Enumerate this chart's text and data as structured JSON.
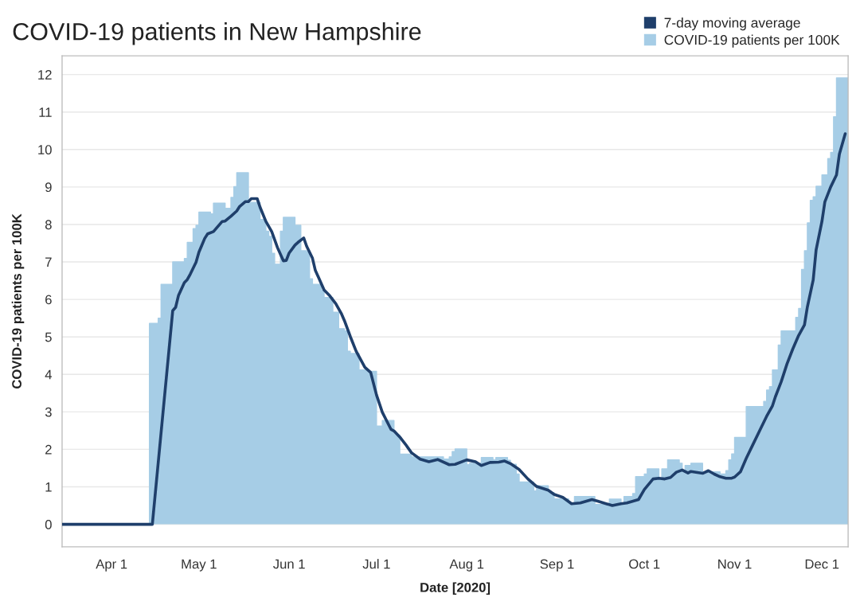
{
  "chart_data": {
    "type": "line",
    "title": "COVID-19 patients in New Hampshire",
    "xlabel": "Date [2020]",
    "ylabel": "COVID-19 patients per 100K",
    "series": [
      {
        "name": "7-day moving average",
        "color": "#1f3f6b",
        "x": [
          "2020-03-15",
          "2020-04-15",
          "2020-04-22",
          "2020-04-23",
          "2020-04-24",
          "2020-04-26",
          "2020-04-27",
          "2020-04-28",
          "2020-04-30",
          "2020-05-01",
          "2020-05-03",
          "2020-05-04",
          "2020-05-06",
          "2020-05-08",
          "2020-05-09",
          "2020-05-10",
          "2020-05-12",
          "2020-05-14",
          "2020-05-15",
          "2020-05-17",
          "2020-05-18",
          "2020-05-19",
          "2020-05-21",
          "2020-05-22",
          "2020-05-24",
          "2020-05-26",
          "2020-05-28",
          "2020-05-30",
          "2020-05-31",
          "2020-06-01",
          "2020-06-03",
          "2020-06-04",
          "2020-06-06",
          "2020-06-07",
          "2020-06-09",
          "2020-06-10",
          "2020-06-11",
          "2020-06-13",
          "2020-06-15",
          "2020-06-17",
          "2020-06-19",
          "2020-06-20",
          "2020-06-22",
          "2020-06-24",
          "2020-06-27",
          "2020-06-29",
          "2020-07-01",
          "2020-07-03",
          "2020-07-06",
          "2020-07-07",
          "2020-07-09",
          "2020-07-11",
          "2020-07-13",
          "2020-07-16",
          "2020-07-19",
          "2020-07-22",
          "2020-07-26",
          "2020-07-28",
          "2020-08-01",
          "2020-08-04",
          "2020-08-06",
          "2020-08-09",
          "2020-08-12",
          "2020-08-14",
          "2020-08-16",
          "2020-08-19",
          "2020-08-22",
          "2020-08-25",
          "2020-08-29",
          "2020-08-31",
          "2020-09-03",
          "2020-09-06",
          "2020-09-09",
          "2020-09-13",
          "2020-09-15",
          "2020-09-20",
          "2020-09-23",
          "2020-09-25",
          "2020-09-29",
          "2020-10-01",
          "2020-10-04",
          "2020-10-06",
          "2020-10-08",
          "2020-10-10",
          "2020-10-12",
          "2020-10-14",
          "2020-10-16",
          "2020-10-17",
          "2020-10-21",
          "2020-10-23",
          "2020-10-25",
          "2020-10-27",
          "2020-10-29",
          "2020-10-31",
          "2020-11-01",
          "2020-11-03",
          "2020-11-05",
          "2020-11-07",
          "2020-11-10",
          "2020-11-12",
          "2020-11-14",
          "2020-11-15",
          "2020-11-17",
          "2020-11-19",
          "2020-11-21",
          "2020-11-23",
          "2020-11-25",
          "2020-11-26",
          "2020-11-28",
          "2020-11-29",
          "2020-12-01",
          "2020-12-02",
          "2020-12-04",
          "2020-12-06",
          "2020-12-07",
          "2020-12-09"
        ],
        "values": [
          0,
          0,
          5.7,
          5.79,
          6.11,
          6.45,
          6.53,
          6.67,
          6.99,
          7.26,
          7.63,
          7.75,
          7.81,
          7.99,
          8.08,
          8.09,
          8.22,
          8.36,
          8.48,
          8.61,
          8.61,
          8.69,
          8.69,
          8.46,
          8.08,
          7.81,
          7.38,
          7.03,
          7.04,
          7.24,
          7.45,
          7.52,
          7.64,
          7.42,
          7.1,
          6.77,
          6.6,
          6.25,
          6.09,
          5.89,
          5.61,
          5.43,
          5.01,
          4.62,
          4.19,
          4.05,
          3.45,
          2.99,
          2.53,
          2.49,
          2.33,
          2.13,
          1.91,
          1.74,
          1.67,
          1.73,
          1.59,
          1.6,
          1.72,
          1.67,
          1.57,
          1.65,
          1.66,
          1.69,
          1.62,
          1.46,
          1.21,
          1.01,
          0.91,
          0.8,
          0.72,
          0.55,
          0.57,
          0.66,
          0.62,
          0.5,
          0.55,
          0.57,
          0.66,
          0.93,
          1.21,
          1.23,
          1.21,
          1.25,
          1.39,
          1.45,
          1.37,
          1.41,
          1.36,
          1.43,
          1.34,
          1.27,
          1.23,
          1.23,
          1.26,
          1.4,
          1.76,
          2.08,
          2.56,
          2.88,
          3.16,
          3.4,
          3.8,
          4.28,
          4.68,
          5.04,
          5.32,
          5.8,
          6.52,
          7.32,
          8.08,
          8.6,
          9.0,
          9.32,
          9.88,
          10.42
        ]
      },
      {
        "name": "COVID-19 patients per 100K",
        "type": "area",
        "color": "#a6cde6",
        "x": [
          "2020-03-15",
          "2020-04-14",
          "2020-04-14",
          "2020-04-17",
          "2020-04-17",
          "2020-04-18",
          "2020-04-18",
          "2020-04-22",
          "2020-04-22",
          "2020-04-26",
          "2020-04-26",
          "2020-04-27",
          "2020-04-27",
          "2020-04-29",
          "2020-04-29",
          "2020-04-30",
          "2020-04-30",
          "2020-05-01",
          "2020-05-01",
          "2020-05-05",
          "2020-05-05",
          "2020-05-06",
          "2020-05-06",
          "2020-05-10",
          "2020-05-10",
          "2020-05-12",
          "2020-05-12",
          "2020-05-13",
          "2020-05-13",
          "2020-05-14",
          "2020-05-14",
          "2020-05-18",
          "2020-05-18",
          "2020-05-22",
          "2020-05-22",
          "2020-05-24",
          "2020-05-24",
          "2020-05-25",
          "2020-05-25",
          "2020-05-26",
          "2020-05-26",
          "2020-05-27",
          "2020-05-27",
          "2020-05-29",
          "2020-05-29",
          "2020-05-30",
          "2020-05-30",
          "2020-06-03",
          "2020-06-03",
          "2020-06-05",
          "2020-06-05",
          "2020-06-07",
          "2020-06-07",
          "2020-06-08",
          "2020-06-08",
          "2020-06-09",
          "2020-06-09",
          "2020-06-12",
          "2020-06-12",
          "2020-06-13",
          "2020-06-13",
          "2020-06-16",
          "2020-06-16",
          "2020-06-18",
          "2020-06-18",
          "2020-06-20",
          "2020-06-20",
          "2020-06-21",
          "2020-06-21",
          "2020-06-22",
          "2020-06-22",
          "2020-06-25",
          "2020-06-25",
          "2020-06-28",
          "2020-06-28",
          "2020-07-01",
          "2020-07-01",
          "2020-07-03",
          "2020-07-03",
          "2020-07-07",
          "2020-07-07",
          "2020-07-08",
          "2020-07-08",
          "2020-07-09",
          "2020-07-09",
          "2020-07-13",
          "2020-07-13",
          "2020-07-24",
          "2020-07-24",
          "2020-07-26",
          "2020-07-26",
          "2020-07-27",
          "2020-07-27",
          "2020-07-28",
          "2020-07-28",
          "2020-08-01",
          "2020-08-01",
          "2020-08-02",
          "2020-08-02",
          "2020-08-06",
          "2020-08-06",
          "2020-08-10",
          "2020-08-10",
          "2020-08-11",
          "2020-08-11",
          "2020-08-15",
          "2020-08-15",
          "2020-08-16",
          "2020-08-16",
          "2020-08-18",
          "2020-08-18",
          "2020-08-19",
          "2020-08-19",
          "2020-08-24",
          "2020-08-24",
          "2020-08-25",
          "2020-08-25",
          "2020-08-29",
          "2020-08-29",
          "2020-08-31",
          "2020-08-31",
          "2020-09-05",
          "2020-09-05",
          "2020-09-07",
          "2020-09-07",
          "2020-09-14",
          "2020-09-14",
          "2020-09-19",
          "2020-09-19",
          "2020-09-23",
          "2020-09-23",
          "2020-09-24",
          "2020-09-24",
          "2020-09-27",
          "2020-09-27",
          "2020-09-28",
          "2020-09-28",
          "2020-10-01",
          "2020-10-01",
          "2020-10-02",
          "2020-10-02",
          "2020-10-06",
          "2020-10-06",
          "2020-10-07",
          "2020-10-07",
          "2020-10-09",
          "2020-10-09",
          "2020-10-13",
          "2020-10-13",
          "2020-10-14",
          "2020-10-14",
          "2020-10-15",
          "2020-10-15",
          "2020-10-17",
          "2020-10-17",
          "2020-10-21",
          "2020-10-21",
          "2020-10-27",
          "2020-10-27",
          "2020-10-29",
          "2020-10-29",
          "2020-10-30",
          "2020-10-30",
          "2020-10-31",
          "2020-10-31",
          "2020-11-01",
          "2020-11-01",
          "2020-11-05",
          "2020-11-05",
          "2020-11-11",
          "2020-11-11",
          "2020-11-12",
          "2020-11-12",
          "2020-11-13",
          "2020-11-13",
          "2020-11-14",
          "2020-11-14",
          "2020-11-16",
          "2020-11-16",
          "2020-11-17",
          "2020-11-17",
          "2020-11-22",
          "2020-11-22",
          "2020-11-23",
          "2020-11-23",
          "2020-11-24",
          "2020-11-24",
          "2020-11-25",
          "2020-11-25",
          "2020-11-26",
          "2020-11-26",
          "2020-11-27",
          "2020-11-27",
          "2020-11-28",
          "2020-11-28",
          "2020-11-29",
          "2020-11-29",
          "2020-12-01",
          "2020-12-01",
          "2020-12-03",
          "2020-12-03",
          "2020-12-04",
          "2020-12-04",
          "2020-12-05",
          "2020-12-05",
          "2020-12-06",
          "2020-12-06",
          "2020-12-10"
        ],
        "values": [
          0,
          0,
          5.36,
          5.36,
          5.5,
          5.5,
          6.4,
          6.4,
          7.0,
          7.0,
          7.09,
          7.09,
          7.52,
          7.52,
          7.89,
          7.89,
          7.98,
          7.98,
          8.33,
          8.33,
          8.28,
          8.28,
          8.57,
          8.57,
          8.43,
          8.43,
          8.72,
          8.72,
          9.01,
          9.01,
          9.38,
          9.38,
          8.59,
          8.59,
          8.13,
          8.13,
          7.82,
          7.82,
          7.68,
          7.68,
          7.23,
          7.23,
          6.94,
          6.94,
          7.82,
          7.82,
          8.19,
          8.19,
          7.98,
          7.98,
          7.3,
          7.3,
          7.26,
          7.26,
          6.55,
          6.55,
          6.4,
          6.4,
          6.25,
          6.25,
          6.05,
          6.05,
          5.66,
          5.66,
          5.22,
          5.22,
          5.16,
          5.16,
          4.62,
          4.62,
          4.56,
          4.56,
          4.12,
          4.12,
          4.08,
          4.08,
          2.62,
          2.62,
          2.77,
          2.77,
          2.43,
          2.43,
          2.38,
          2.38,
          1.87,
          1.87,
          1.8,
          1.8,
          1.74,
          1.74,
          1.8,
          1.8,
          1.94,
          1.94,
          2.01,
          2.01,
          1.59,
          1.59,
          1.63,
          1.63,
          1.78,
          1.78,
          1.72,
          1.72,
          1.78,
          1.78,
          1.71,
          1.71,
          1.6,
          1.6,
          1.34,
          1.34,
          1.13,
          1.13,
          0.89,
          0.89,
          1.03,
          1.03,
          0.85,
          0.85,
          0.68,
          0.68,
          0.57,
          0.57,
          0.74,
          0.74,
          0.53,
          0.53,
          0.67,
          0.67,
          0.55,
          0.55,
          0.74,
          0.74,
          0.82,
          0.82,
          1.27,
          1.27,
          1.34,
          1.34,
          1.48,
          1.48,
          1.21,
          1.21,
          1.48,
          1.48,
          1.72,
          1.72,
          1.63,
          1.63,
          1.43,
          1.43,
          1.57,
          1.57,
          1.63,
          1.63,
          1.4,
          1.4,
          1.34,
          1.34,
          1.43,
          1.43,
          1.72,
          1.72,
          1.88,
          1.88,
          2.32,
          2.32,
          3.14,
          3.14,
          3.28,
          3.28,
          3.58,
          3.58,
          3.67,
          3.67,
          4.12,
          4.12,
          4.78,
          4.78,
          5.16,
          5.16,
          5.52,
          5.52,
          5.76,
          5.76,
          6.8,
          6.8,
          7.3,
          7.3,
          8.04,
          8.04,
          8.64,
          8.64,
          8.74,
          8.74,
          9.02,
          9.02,
          9.32,
          9.32,
          9.76,
          9.76,
          9.92,
          9.92,
          10.87,
          10.87,
          11.91,
          11.91
        ]
      }
    ],
    "xlim": [
      "2020-03-15",
      "2020-12-10"
    ],
    "xticks": [
      {
        "value": "2020-04-01",
        "label": "Apr 1"
      },
      {
        "value": "2020-05-01",
        "label": "May 1"
      },
      {
        "value": "2020-06-01",
        "label": "Jun 1"
      },
      {
        "value": "2020-07-01",
        "label": "Jul 1"
      },
      {
        "value": "2020-08-01",
        "label": "Aug 1"
      },
      {
        "value": "2020-09-01",
        "label": "Sep 1"
      },
      {
        "value": "2020-10-01",
        "label": "Oct 1"
      },
      {
        "value": "2020-11-01",
        "label": "Nov 1"
      },
      {
        "value": "2020-12-01",
        "label": "Dec 1"
      }
    ],
    "ylim": [
      -0.6,
      12.5
    ],
    "yticks": [
      0,
      1,
      2,
      3,
      4,
      5,
      6,
      7,
      8,
      9,
      10,
      11,
      12
    ],
    "grid": "y",
    "legend": "top right"
  }
}
